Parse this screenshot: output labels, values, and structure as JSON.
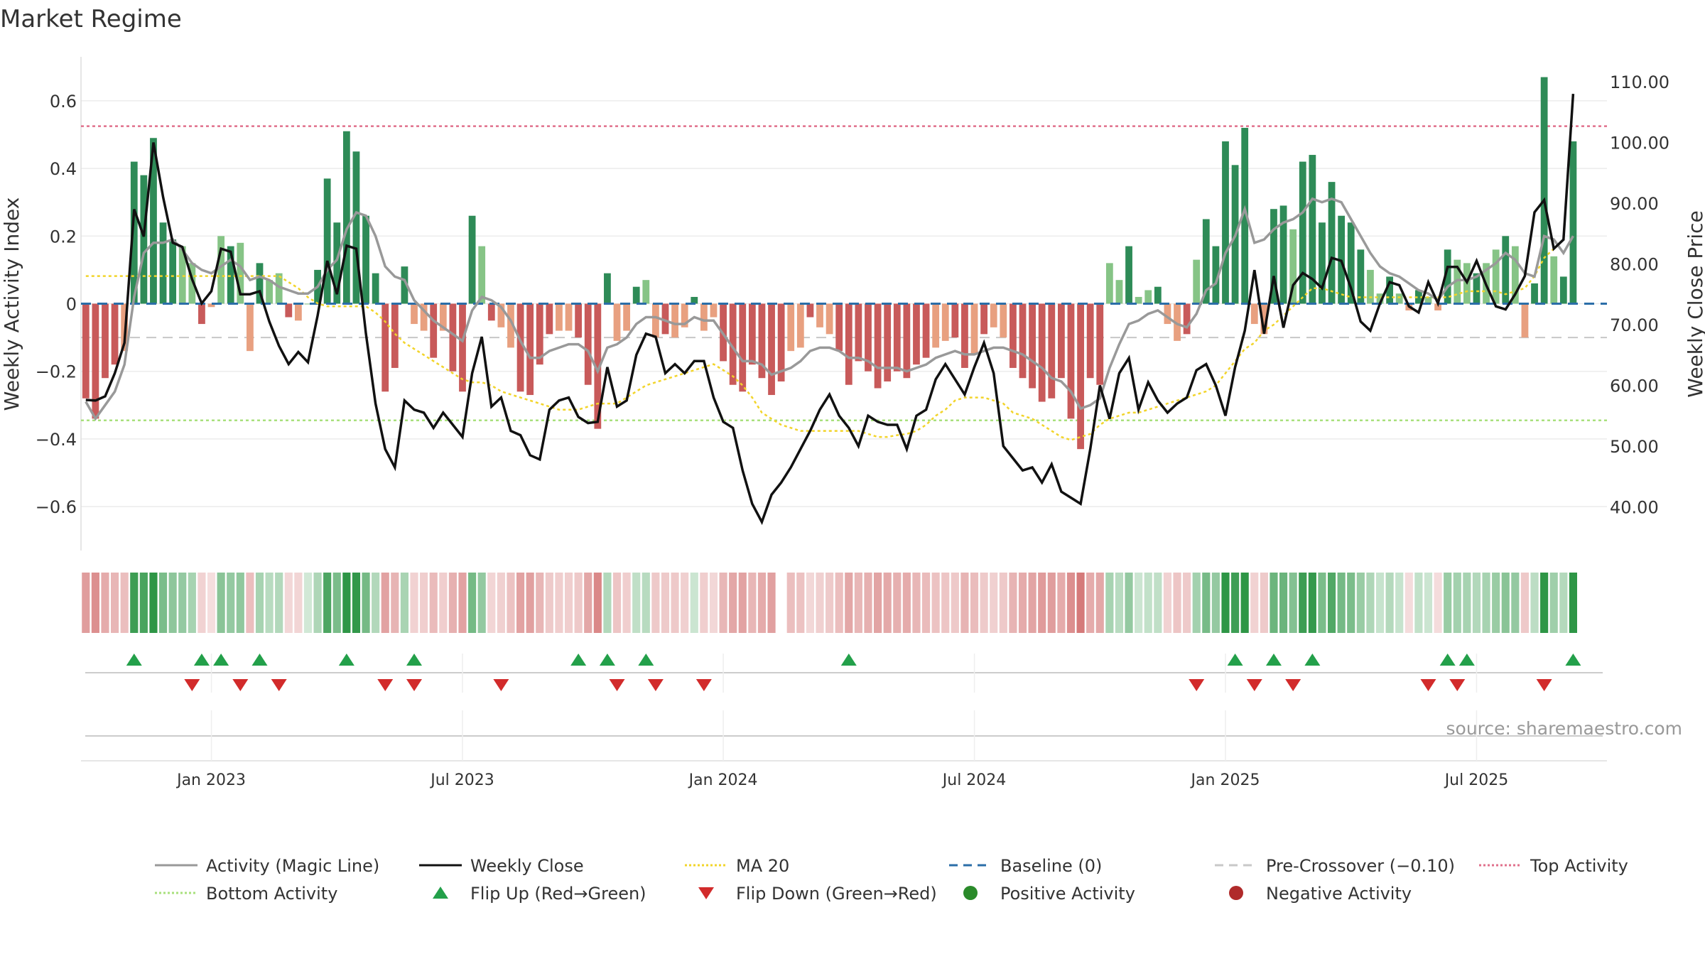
{
  "chart_data": {
    "type": "bar",
    "title": "Market Regime",
    "source_note": "source: sharemaestro.com",
    "y_left_label": "Weekly Activity Index",
    "y_right_label": "Weekly Close Price",
    "y_left_ticks": [
      "0.6",
      "0.4",
      "0.2",
      "0",
      "−0.2",
      "−0.4",
      "−0.6"
    ],
    "y_left_tick_values": [
      0.6,
      0.4,
      0.2,
      0,
      -0.2,
      -0.4,
      -0.6
    ],
    "y_right_ticks": [
      "110.00",
      "100.00",
      "90.00",
      "80.00",
      "70.00",
      "60.00",
      "50.00",
      "40.00"
    ],
    "y_right_tick_values": [
      110,
      100,
      90,
      80,
      70,
      60,
      50,
      40
    ],
    "y_left_range": [
      -0.73,
      0.73
    ],
    "y_right_range": [
      32.8,
      114.1
    ],
    "x_ticks": [
      "Jan 2023",
      "Jul 2023",
      "Jan 2024",
      "Jul 2024",
      "Jan 2025",
      "Jul 2025"
    ],
    "x_tick_week_index": [
      13,
      39,
      66,
      92,
      118,
      144
    ],
    "x_range_week_index": [
      -0.5,
      157.5
    ],
    "levels": {
      "top_activity": 0.525,
      "bottom_activity": -0.345,
      "pre_crossover": -0.1,
      "baseline": 0
    },
    "activity": [
      -0.28,
      -0.34,
      -0.22,
      -0.18,
      -0.14,
      0.42,
      0.38,
      0.49,
      0.24,
      0.19,
      0.17,
      0.12,
      -0.06,
      -0.01,
      0.2,
      0.17,
      0.18,
      -0.14,
      0.12,
      0.07,
      0.09,
      -0.04,
      -0.05,
      0,
      0.1,
      0.37,
      0.24,
      0.51,
      0.45,
      0.26,
      0.09,
      -0.26,
      -0.19,
      0.11,
      -0.06,
      -0.08,
      -0.16,
      -0.08,
      -0.2,
      -0.26,
      0.26,
      0.17,
      -0.05,
      -0.07,
      -0.13,
      -0.26,
      -0.27,
      -0.18,
      -0.09,
      -0.08,
      -0.08,
      -0.1,
      -0.24,
      -0.37,
      0.09,
      -0.11,
      -0.08,
      0.05,
      0.07,
      -0.1,
      -0.09,
      -0.1,
      -0.07,
      0.02,
      -0.08,
      -0.04,
      -0.17,
      -0.24,
      -0.26,
      -0.18,
      -0.22,
      -0.27,
      -0.23,
      -0.14,
      -0.13,
      -0.04,
      -0.07,
      -0.09,
      -0.14,
      -0.24,
      -0.17,
      -0.2,
      -0.25,
      -0.23,
      -0.2,
      -0.22,
      -0.18,
      -0.16,
      -0.13,
      -0.11,
      -0.1,
      -0.19,
      -0.15,
      -0.09,
      -0.07,
      -0.1,
      -0.19,
      -0.22,
      -0.25,
      -0.29,
      -0.28,
      -0.22,
      -0.34,
      -0.43,
      -0.22,
      -0.24,
      0.12,
      0.07,
      0.17,
      0.02,
      0.04,
      0.05,
      -0.06,
      -0.11,
      -0.09,
      0.13,
      0.25,
      0.17,
      0.48,
      0.41,
      0.52,
      -0.06,
      -0.09,
      0.28,
      0.29,
      0.22,
      0.42,
      0.44,
      0.24,
      0.36,
      0.26,
      0.24,
      0.16,
      0.1,
      0.03,
      0.08,
      0.03,
      -0.02,
      0.04,
      0.02,
      -0.02,
      0.16,
      0.13,
      0.12,
      0.09,
      0.12,
      0.16,
      0.2,
      0.17,
      -0.1,
      0.06,
      0.67,
      0.14,
      0.08,
      0.48
    ],
    "magic_line": [
      -0.29,
      -0.34,
      -0.3,
      -0.26,
      -0.18,
      0.02,
      0.15,
      0.18,
      0.18,
      0.19,
      0.16,
      0.12,
      0.1,
      0.09,
      0.11,
      0.13,
      0.11,
      0.07,
      0.08,
      0.07,
      0.05,
      0.04,
      0.03,
      0.03,
      0.05,
      0.1,
      0.13,
      0.22,
      0.27,
      0.26,
      0.2,
      0.11,
      0.08,
      0.07,
      0.01,
      -0.02,
      -0.05,
      -0.07,
      -0.09,
      -0.11,
      -0.02,
      0.02,
      0.01,
      -0.01,
      -0.05,
      -0.11,
      -0.16,
      -0.16,
      -0.14,
      -0.13,
      -0.12,
      -0.12,
      -0.14,
      -0.2,
      -0.13,
      -0.12,
      -0.1,
      -0.06,
      -0.04,
      -0.04,
      -0.05,
      -0.06,
      -0.06,
      -0.04,
      -0.05,
      -0.05,
      -0.09,
      -0.13,
      -0.17,
      -0.17,
      -0.18,
      -0.21,
      -0.2,
      -0.19,
      -0.17,
      -0.14,
      -0.13,
      -0.13,
      -0.14,
      -0.16,
      -0.16,
      -0.17,
      -0.19,
      -0.19,
      -0.19,
      -0.2,
      -0.19,
      -0.18,
      -0.16,
      -0.15,
      -0.14,
      -0.15,
      -0.15,
      -0.14,
      -0.13,
      -0.13,
      -0.14,
      -0.15,
      -0.17,
      -0.19,
      -0.22,
      -0.23,
      -0.26,
      -0.31,
      -0.3,
      -0.28,
      -0.19,
      -0.12,
      -0.06,
      -0.05,
      -0.03,
      -0.02,
      -0.04,
      -0.06,
      -0.07,
      -0.03,
      0.04,
      0.06,
      0.15,
      0.2,
      0.28,
      0.18,
      0.19,
      0.22,
      0.24,
      0.25,
      0.27,
      0.31,
      0.3,
      0.31,
      0.3,
      0.25,
      0.2,
      0.15,
      0.11,
      0.09,
      0.08,
      0.06,
      0.04,
      0.03,
      0.01,
      0.05,
      0.07,
      0.07,
      0.08,
      0.1,
      0.12,
      0.15,
      0.13,
      0.09,
      0.08,
      0.2,
      0.19,
      0.15,
      0.2
    ],
    "weekly_close": [
      57.6,
      57.5,
      58.2,
      62.0,
      67.0,
      89.0,
      84.5,
      100.0,
      91.0,
      83.5,
      82.8,
      77.5,
      73.5,
      75.5,
      82.5,
      82.0,
      75.0,
      75.0,
      75.5,
      70.5,
      66.5,
      63.5,
      65.5,
      63.8,
      71.5,
      80.5,
      75.0,
      83.0,
      82.5,
      68.5,
      57.0,
      49.5,
      46.5,
      57.5,
      56.0,
      55.5,
      53.0,
      55.5,
      53.5,
      51.5,
      62.0,
      68.0,
      56.5,
      58.0,
      52.5,
      51.8,
      48.5,
      47.8,
      56.0,
      57.5,
      58.0,
      54.8,
      53.8,
      54.0,
      63.0,
      56.5,
      57.5,
      65.0,
      68.5,
      68.0,
      62.0,
      63.5,
      62.0,
      64.0,
      64.0,
      58.0,
      54.0,
      53.0,
      46.0,
      40.5,
      37.5,
      42.0,
      44.0,
      46.5,
      49.5,
      52.5,
      56.0,
      58.5,
      55.0,
      53.0,
      50.0,
      55.0,
      54.0,
      53.5,
      53.5,
      49.5,
      55.0,
      56.0,
      61.0,
      63.5,
      61.0,
      58.5,
      63.0,
      67.0,
      62.0,
      50.0,
      48.0,
      46.0,
      46.5,
      44.0,
      47.0,
      42.5,
      41.5,
      40.5,
      49.5,
      60.0,
      54.5,
      62.0,
      64.5,
      56.0,
      60.5,
      57.5,
      55.5,
      57.0,
      58.0,
      62.5,
      63.5,
      60.0,
      55.0,
      63.0,
      69.0,
      79.0,
      68.5,
      78.0,
      69.5,
      76.5,
      78.5,
      77.5,
      76.0,
      81.0,
      80.5,
      76.0,
      70.5,
      69.0,
      73.5,
      77.0,
      76.5,
      73.0,
      72.0,
      77.0,
      73.5,
      79.5,
      79.5,
      77.0,
      80.5,
      76.5,
      73.0,
      72.5,
      75.0,
      78.0,
      88.5,
      90.5,
      82.5,
      84.0,
      108.0
    ],
    "ma20": [
      78.0,
      78.0,
      78.0,
      78.0,
      78.0,
      78.0,
      78.0,
      78.0,
      78.0,
      78.0,
      78.0,
      78.0,
      78.0,
      78.0,
      78.0,
      78.0,
      78.0,
      78.0,
      78.0,
      78.0,
      78.0,
      77.0,
      76.0,
      74.5,
      73.5,
      73.0,
      73.0,
      73.0,
      73.0,
      73.0,
      72.0,
      70.5,
      68.5,
      67.0,
      66.0,
      65.0,
      64.0,
      63.0,
      62.0,
      61.0,
      60.5,
      60.5,
      60.0,
      59.0,
      58.5,
      58.0,
      57.5,
      57.0,
      56.5,
      56.0,
      56.0,
      56.0,
      56.5,
      57.0,
      57.0,
      57.0,
      58.0,
      59.0,
      60.0,
      60.5,
      61.0,
      61.5,
      62.0,
      62.5,
      63.0,
      63.5,
      62.5,
      61.5,
      60.0,
      58.0,
      55.5,
      54.5,
      53.5,
      53.0,
      52.5,
      52.5,
      52.5,
      52.5,
      52.5,
      52.5,
      52.5,
      52.0,
      51.5,
      51.5,
      51.8,
      52.0,
      52.5,
      53.5,
      55.0,
      56.0,
      57.5,
      58.0,
      58.0,
      58.0,
      57.5,
      57.0,
      55.5,
      55.0,
      54.5,
      53.5,
      52.5,
      51.5,
      51.0,
      51.5,
      52.0,
      53.5,
      54.5,
      55.0,
      55.5,
      55.5,
      56.0,
      56.5,
      57.0,
      57.5,
      58.0,
      58.5,
      59.0,
      60.0,
      62.0,
      64.0,
      66.0,
      67.0,
      69.0,
      70.0,
      71.5,
      73.0,
      74.5,
      76.0,
      76.0,
      75.5,
      75.0,
      74.5,
      74.5,
      74.5,
      74.5,
      74.5,
      74.5,
      74.5,
      74.5,
      74.5,
      74.5,
      74.5,
      75.0,
      75.5,
      75.5,
      75.5,
      75.5,
      75.0,
      75.5,
      76.0,
      78.0,
      81.0,
      82.5
    ],
    "flip_up_weeks": [
      5,
      12,
      14,
      18,
      27,
      34,
      51,
      54,
      58,
      79,
      119,
      123,
      127,
      141,
      143,
      154
    ],
    "flip_down_weeks": [
      11,
      16,
      20,
      31,
      34,
      43,
      55,
      59,
      64,
      115,
      121,
      125,
      139,
      142,
      151
    ],
    "regime_gap_weeks": [
      72
    ],
    "legend": [
      {
        "label": "Activity (Magic Line)",
        "kind": "line",
        "color": "#999999",
        "dash": ""
      },
      {
        "label": "Weekly Close",
        "kind": "line",
        "color": "#111111",
        "dash": ""
      },
      {
        "label": "MA 20",
        "kind": "line",
        "color": "#f2d42a",
        "dash": "3,3"
      },
      {
        "label": "Baseline (0)",
        "kind": "line",
        "color": "#2b6ea8",
        "dash": "12,8"
      },
      {
        "label": "Pre-Crossover (−0.10)",
        "kind": "line",
        "color": "#c8c8c8",
        "dash": "12,8"
      },
      {
        "label": "Top Activity",
        "kind": "line",
        "color": "#e0708c",
        "dash": "3,3"
      },
      {
        "label": "Bottom Activity",
        "kind": "line",
        "color": "#a8e07c",
        "dash": "3,3"
      },
      {
        "label": "Flip Up (Red→Green)",
        "kind": "triangle-up",
        "color": "#23a04a"
      },
      {
        "label": "Flip Down (Green→Red)",
        "kind": "triangle-down",
        "color": "#d22b2b"
      },
      {
        "label": "Positive Activity",
        "kind": "dot",
        "color": "#2a8a2a"
      },
      {
        "label": "Negative Activity",
        "kind": "dot",
        "color": "#b02a2a"
      }
    ],
    "colors": {
      "positive_strong": "#2e8b57",
      "positive_weak": "#86c486",
      "negative_strong": "#c85a5a",
      "negative_weak": "#e8a080"
    }
  }
}
